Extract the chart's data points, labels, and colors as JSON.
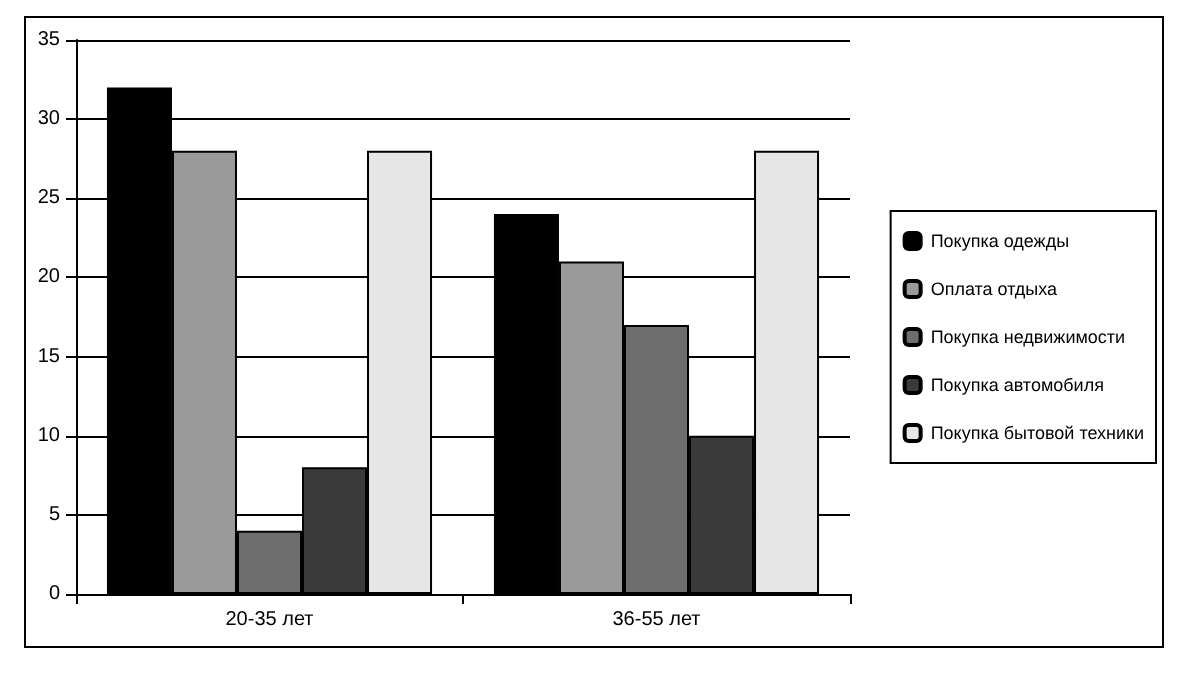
{
  "chart_data": {
    "type": "bar",
    "categories": [
      "20-35 лет",
      "36-55 лет"
    ],
    "series": [
      {
        "name": "Покупка одежды",
        "color": "#000000",
        "values": [
          32,
          24
        ]
      },
      {
        "name": "Оплата отдыха",
        "color": "#9a9a9a",
        "values": [
          28,
          21
        ]
      },
      {
        "name": "Покупка недвижимости",
        "color": "#6e6e6e",
        "values": [
          4,
          17
        ]
      },
      {
        "name": "Покупка автомобиля",
        "color": "#3a3a3a",
        "values": [
          8,
          10
        ]
      },
      {
        "name": "Покупка бытовой техники",
        "color": "#e6e6e6",
        "values": [
          28,
          28
        ]
      }
    ],
    "ylim": [
      0,
      35
    ],
    "yticks": [
      0,
      5,
      10,
      15,
      20,
      25,
      30,
      35
    ],
    "grid": "y",
    "legend": "right"
  }
}
